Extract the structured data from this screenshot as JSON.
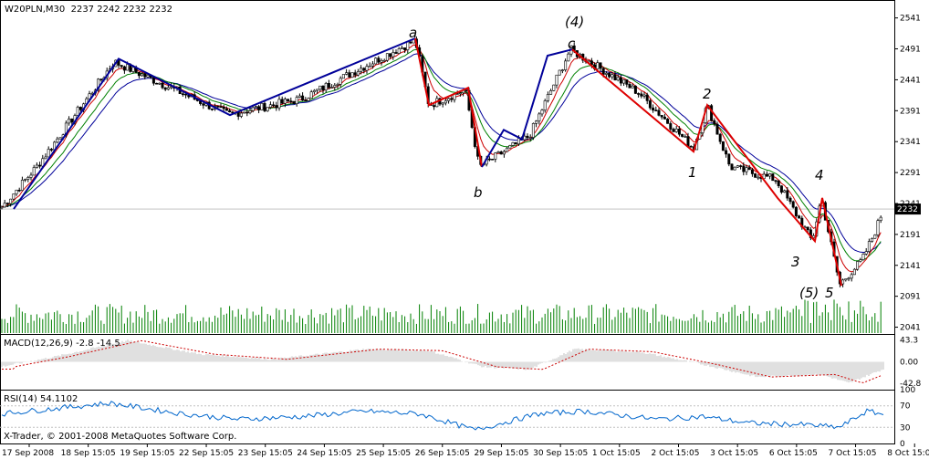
{
  "window": {
    "title": "W20PLN,M30",
    "ohlc": "2237 2242 2232 2232",
    "copyright": "X-Trader, © 2001-2008 MetaQuotes Software Corp."
  },
  "colors": {
    "candle": "#000000",
    "volume": "#008000",
    "ma_fast": "#cc0000",
    "ma_mid": "#008000",
    "ma_slow": "#000099",
    "wave_up": "#000099",
    "wave_down": "#dd0000",
    "macd_hist": "#c0c0c0",
    "macd_signal": "#cc0000",
    "rsi": "#0066cc"
  },
  "price_axis": {
    "ticks": [
      "2541",
      "2491",
      "2441",
      "2391",
      "2341",
      "2291",
      "2241",
      "2191",
      "2141",
      "2091",
      "2041"
    ],
    "current": "2232"
  },
  "time_axis": {
    "labels": [
      "17 Sep 2008",
      "18 Sep 15:05",
      "19 Sep 15:05",
      "22 Sep 15:05",
      "23 Sep 15:05",
      "24 Sep 15:05",
      "25 Sep 15:05",
      "26 Sep 15:05",
      "29 Sep 15:05",
      "30 Sep 15:05",
      "1 Oct 15:05",
      "2 Oct 15:05",
      "3 Oct 15:05",
      "6 Oct 15:05",
      "7 Oct 15:05",
      "8 Oct 15:05"
    ]
  },
  "macd": {
    "title": "MACD(12,26,9) -2.8 -14.5",
    "ticks": [
      "43.3",
      "0.00",
      "-42.8"
    ]
  },
  "rsi": {
    "title": "RSI(14) 54.1102",
    "ticks": [
      "100",
      "70",
      "30",
      "0"
    ]
  },
  "wave_labels": {
    "a": "a",
    "b": "b",
    "c": "c",
    "w4": "(4)",
    "w5": "(5)",
    "n1": "1",
    "n2": "2",
    "n3": "3",
    "n4": "4",
    "n5": "5"
  },
  "chart_data": {
    "type": "candlestick",
    "title": "W20PLN,M30",
    "ylim": [
      2030,
      2570
    ],
    "wave_path_up": [
      [
        "17 Sep 2008",
        2230
      ],
      [
        "18 Sep 15:05",
        2475
      ],
      [
        "22 Sep 15:05",
        2380
      ],
      [
        "25 Sep 15:05",
        2510
      ]
    ],
    "wave_path_down_1": [
      [
        "26 Sep 15:05",
        2510
      ],
      [
        "26 Sep 15:05",
        2400
      ],
      [
        "29 Sep 15:05",
        2430
      ],
      [
        "29 Sep 15:05",
        2300
      ]
    ],
    "wave_path_up_2": [
      [
        "29 Sep 15:05",
        2300
      ],
      [
        "30 Sep 15:05",
        2360
      ],
      [
        "30 Sep 15:05",
        2480
      ]
    ],
    "wave_path_down_2": [
      [
        "30 Sep 15:05",
        2495
      ],
      [
        "2 Oct 15:05",
        2325
      ],
      [
        "3 Oct 15:05",
        2400
      ],
      [
        "6 Oct 15:05",
        2200
      ],
      [
        "7 Oct 15:05",
        2250
      ],
      [
        "7 Oct 15:05",
        2105
      ]
    ],
    "price_key_points": [
      [
        0,
        2232
      ],
      [
        40,
        2300
      ],
      [
        125,
        2470
      ],
      [
        250,
        2385
      ],
      [
        330,
        2410
      ],
      [
        455,
        2505
      ],
      [
        470,
        2400
      ],
      [
        510,
        2425
      ],
      [
        525,
        2300
      ],
      [
        580,
        2350
      ],
      [
        625,
        2490
      ],
      [
        700,
        2420
      ],
      [
        760,
        2330
      ],
      [
        775,
        2400
      ],
      [
        800,
        2300
      ],
      [
        850,
        2280
      ],
      [
        890,
        2180
      ],
      [
        900,
        2250
      ],
      [
        920,
        2110
      ],
      [
        945,
        2150
      ],
      [
        960,
        2200
      ],
      [
        968,
        2232
      ]
    ],
    "macd_key_points": [
      [
        0,
        -10
      ],
      [
        60,
        10
      ],
      [
        140,
        42
      ],
      [
        220,
        15
      ],
      [
        300,
        5
      ],
      [
        400,
        25
      ],
      [
        470,
        22
      ],
      [
        530,
        -10
      ],
      [
        580,
        -15
      ],
      [
        630,
        25
      ],
      [
        700,
        20
      ],
      [
        770,
        -5
      ],
      [
        830,
        -30
      ],
      [
        900,
        -25
      ],
      [
        930,
        -42
      ],
      [
        968,
        -14.5
      ]
    ],
    "rsi_key_points": [
      [
        0,
        55
      ],
      [
        60,
        65
      ],
      [
        120,
        75
      ],
      [
        200,
        55
      ],
      [
        260,
        45
      ],
      [
        330,
        50
      ],
      [
        400,
        60
      ],
      [
        460,
        55
      ],
      [
        520,
        25
      ],
      [
        590,
        55
      ],
      [
        640,
        60
      ],
      [
        720,
        45
      ],
      [
        770,
        50
      ],
      [
        820,
        38
      ],
      [
        880,
        35
      ],
      [
        920,
        30
      ],
      [
        950,
        60
      ],
      [
        968,
        54
      ]
    ]
  }
}
